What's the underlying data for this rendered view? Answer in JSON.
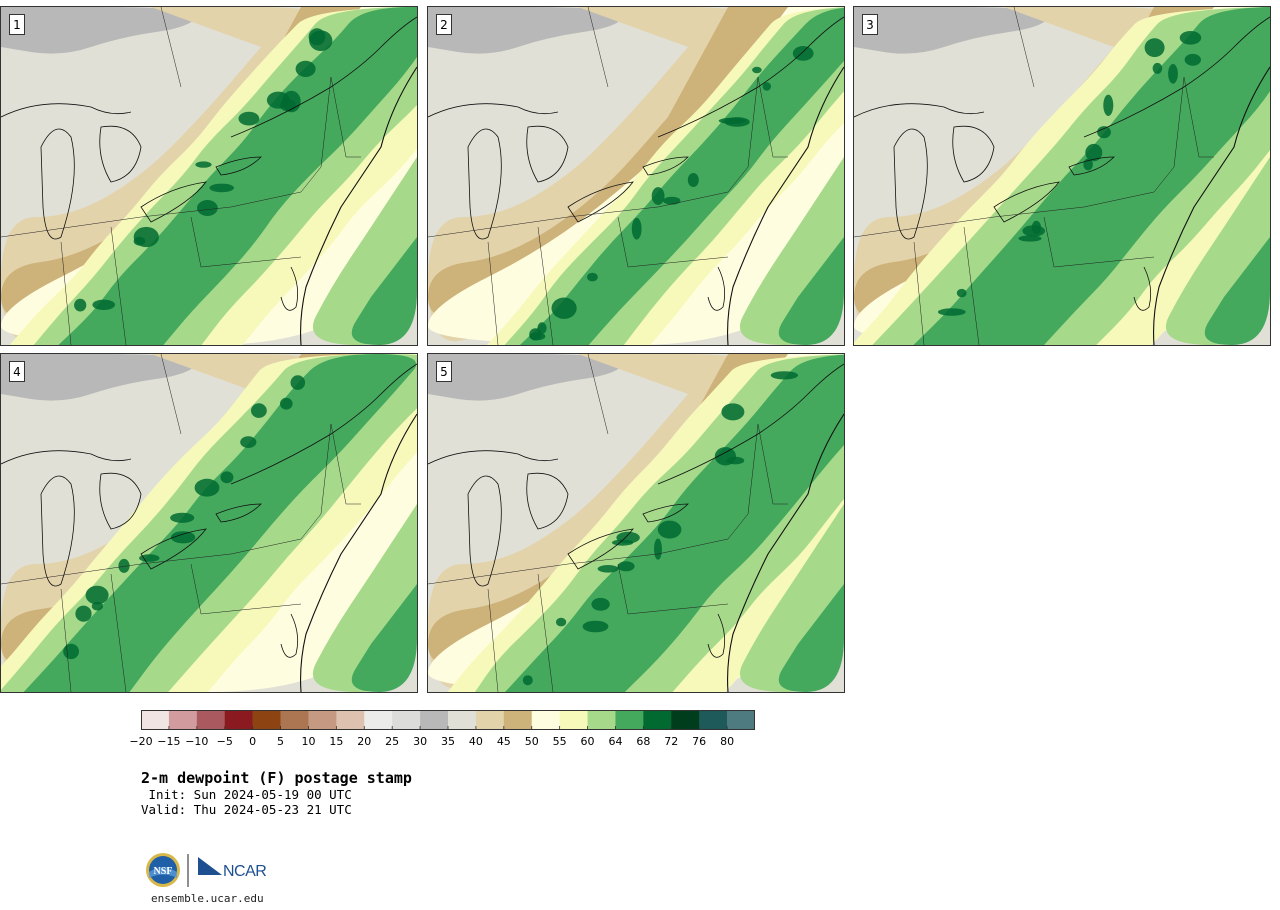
{
  "title": "2-m dewpoint (F) postage stamp",
  "init_line": " Init: Sun 2024-05-19 00 UTC",
  "valid_line": "Valid: Thu 2024-05-23 21 UTC",
  "website": "ensemble.ucar.edu",
  "logo": {
    "nsf_text": "NSF",
    "ncar_text": "NCAR"
  },
  "panels": [
    {
      "label": "1"
    },
    {
      "label": "2"
    },
    {
      "label": "3"
    },
    {
      "label": "4"
    },
    {
      "label": "5"
    }
  ],
  "colorbar": {
    "tick_labels": [
      "−20",
      "−15",
      "−10",
      "−5",
      "0",
      "5",
      "10",
      "15",
      "20",
      "25",
      "30",
      "35",
      "40",
      "45",
      "50",
      "55",
      "60",
      "64",
      "68",
      "72",
      "76",
      "80"
    ],
    "colors": [
      "#f1e5e4",
      "#d29b9d",
      "#aa5a5e",
      "#8b1a20",
      "#8e4412",
      "#ad7652",
      "#c69a82",
      "#dfc1b0",
      "#ececea",
      "#dcdcda",
      "#b8b8b8",
      "#e0e0d6",
      "#e3d3ab",
      "#cdb27a",
      "#fffde0",
      "#f7f9bb",
      "#a6da8a",
      "#44a95d",
      "#006a30",
      "#003d1c",
      "#1e5a5a",
      "#4d7b80"
    ]
  }
}
